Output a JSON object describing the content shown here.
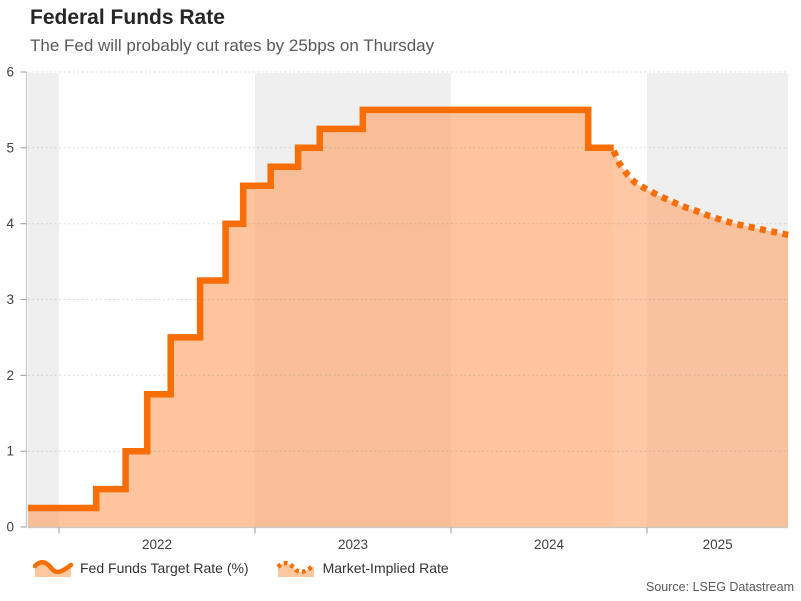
{
  "header": {
    "title": "Federal Funds Rate",
    "subtitle": "The Fed will probably cut rates by 25bps on Thursday"
  },
  "legend": [
    {
      "label": "Fed Funds Target Rate (%)",
      "icon": "area-solid-wave-icon"
    },
    {
      "label": "Market-Implied Rate",
      "icon": "area-dotted-wave-icon"
    }
  ],
  "source": "Source: LSEG Datastream",
  "colors": {
    "line_orange": "#F76D06",
    "area_fill": "#FCA466",
    "area_fill_alpha_history": 0.645,
    "area_fill_alpha_implied": 0.6,
    "year_band_gray": "#EFEFEF",
    "axis_line": "#C9C9C9",
    "tick": "#999999",
    "gridline": "rgba(120,120,120,0.3)",
    "axis_label": "#404040",
    "title_text": "#262626",
    "subtitle_text": "#595959"
  },
  "chart_data": {
    "type": "area",
    "title": "Federal Funds Rate",
    "subtitle": "The Fed will probably cut rates by 25bps on Thursday",
    "xlabel": "",
    "ylabel": "",
    "x_range_years": [
      2021.84,
      2025.72
    ],
    "ylim": [
      0,
      6
    ],
    "grid": "horizontal-dotted",
    "legend_position": "bottom-left",
    "y_ticks": [
      {
        "v": 0,
        "label": "0"
      },
      {
        "v": 1,
        "label": "1"
      },
      {
        "v": 2,
        "label": "2"
      },
      {
        "v": 3,
        "label": "3"
      },
      {
        "v": 4,
        "label": "4"
      },
      {
        "v": 5,
        "label": "5"
      },
      {
        "v": 6,
        "label": "6"
      }
    ],
    "x_ticks": [
      {
        "t": 2022,
        "label": "2022"
      },
      {
        "t": 2023,
        "label": "2023"
      },
      {
        "t": 2024,
        "label": "2024"
      },
      {
        "t": 2025,
        "label": "2025"
      }
    ],
    "shaded_year_bands": [
      [
        2021.84,
        2022.0
      ],
      [
        2023.0,
        2024.0
      ],
      [
        2025.0,
        2025.72
      ]
    ],
    "series": [
      {
        "name": "Fed Funds Target Rate (%)",
        "style": "solid-step",
        "steps": [
          [
            2021.84,
            0.25
          ],
          [
            2022.19,
            0.5
          ],
          [
            2022.34,
            1.0
          ],
          [
            2022.45,
            1.75
          ],
          [
            2022.57,
            2.5
          ],
          [
            2022.72,
            3.25
          ],
          [
            2022.85,
            4.0
          ],
          [
            2022.94,
            4.5
          ],
          [
            2023.08,
            4.75
          ],
          [
            2023.22,
            5.0
          ],
          [
            2023.33,
            5.25
          ],
          [
            2023.55,
            5.5
          ],
          [
            2024.7,
            5.0
          ]
        ],
        "end_t": 2024.83
      },
      {
        "name": "Market-Implied Rate",
        "style": "dotted-line",
        "points": [
          [
            2024.83,
            4.96
          ],
          [
            2024.86,
            4.79
          ],
          [
            2024.9,
            4.65
          ],
          [
            2024.94,
            4.54
          ],
          [
            2025.0,
            4.45
          ],
          [
            2025.06,
            4.37
          ],
          [
            2025.12,
            4.3
          ],
          [
            2025.18,
            4.23
          ],
          [
            2025.25,
            4.17
          ],
          [
            2025.32,
            4.1
          ],
          [
            2025.39,
            4.04
          ],
          [
            2025.46,
            3.99
          ],
          [
            2025.54,
            3.95
          ],
          [
            2025.61,
            3.91
          ],
          [
            2025.67,
            3.88
          ],
          [
            2025.72,
            3.85
          ]
        ]
      }
    ]
  }
}
